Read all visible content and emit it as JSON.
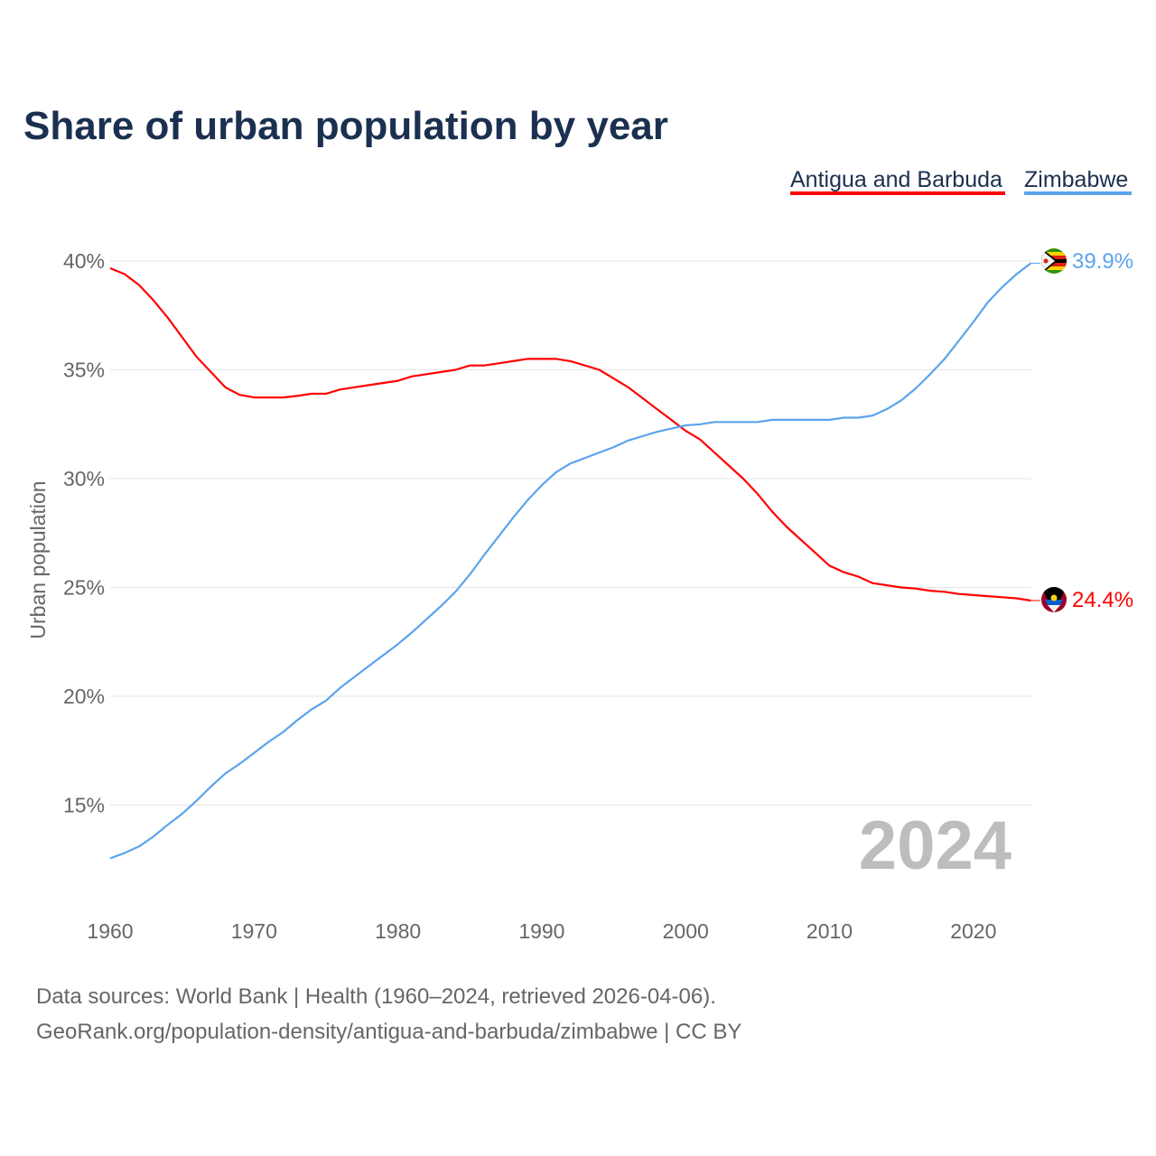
{
  "chart_data": {
    "type": "line",
    "title": "Share of urban population by year",
    "ylabel": "Urban population",
    "xlabel": "",
    "xlim": [
      1960,
      2024
    ],
    "ylim": [
      12,
      41
    ],
    "x_ticks": [
      1960,
      1970,
      1980,
      1990,
      2000,
      2010,
      2020
    ],
    "x_tick_labels": [
      "1960",
      "1970",
      "1980",
      "1990",
      "2000",
      "2010",
      "2020"
    ],
    "y_ticks": [
      15,
      20,
      25,
      30,
      35,
      40
    ],
    "y_tick_labels": [
      "15%",
      "20%",
      "25%",
      "30%",
      "35%",
      "40%"
    ],
    "grid": true,
    "legend_position": "top-right",
    "current_year_label": "2024",
    "x": [
      1960,
      1961,
      1962,
      1963,
      1964,
      1965,
      1966,
      1967,
      1968,
      1969,
      1970,
      1971,
      1972,
      1973,
      1974,
      1975,
      1976,
      1977,
      1978,
      1979,
      1980,
      1981,
      1982,
      1983,
      1984,
      1985,
      1986,
      1987,
      1988,
      1989,
      1990,
      1991,
      1992,
      1993,
      1994,
      1995,
      1996,
      1997,
      1998,
      1999,
      2000,
      2001,
      2002,
      2003,
      2004,
      2005,
      2006,
      2007,
      2008,
      2009,
      2010,
      2011,
      2012,
      2013,
      2014,
      2015,
      2016,
      2017,
      2018,
      2019,
      2020,
      2021,
      2022,
      2023,
      2024
    ],
    "series": [
      {
        "name": "Antigua and Barbuda",
        "color": "#ff0000",
        "end_label": "24.4%",
        "flag": "antigua-and-barbuda-flag",
        "values": [
          39.67,
          39.4,
          38.9,
          38.2,
          37.4,
          36.5,
          35.6,
          34.9,
          34.2,
          33.85,
          33.73,
          33.73,
          33.73,
          33.8,
          33.9,
          33.9,
          34.1,
          34.2,
          34.3,
          34.4,
          34.5,
          34.7,
          34.8,
          34.9,
          35.0,
          35.2,
          35.2,
          35.3,
          35.4,
          35.5,
          35.5,
          35.5,
          35.4,
          35.2,
          35.0,
          34.6,
          34.2,
          33.7,
          33.2,
          32.7,
          32.2,
          31.8,
          31.2,
          30.6,
          30.0,
          29.3,
          28.5,
          27.8,
          27.2,
          26.6,
          26.0,
          25.7,
          25.5,
          25.2,
          25.1,
          25.0,
          24.95,
          24.85,
          24.8,
          24.7,
          24.65,
          24.6,
          24.55,
          24.5,
          24.4
        ]
      },
      {
        "name": "Zimbabwe",
        "color": "#5ba4ec",
        "end_label": "39.9%",
        "flag": "zimbabwe-flag",
        "values": [
          12.55,
          12.8,
          13.1,
          13.55,
          14.1,
          14.6,
          15.2,
          15.85,
          16.45,
          16.9,
          17.4,
          17.9,
          18.35,
          18.9,
          19.4,
          19.8,
          20.4,
          20.9,
          21.4,
          21.9,
          22.4,
          22.95,
          23.55,
          24.15,
          24.8,
          25.6,
          26.5,
          27.35,
          28.2,
          29.0,
          29.7,
          30.3,
          30.7,
          30.95,
          31.2,
          31.45,
          31.75,
          31.95,
          32.15,
          32.3,
          32.45,
          32.5,
          32.6,
          32.6,
          32.6,
          32.6,
          32.7,
          32.7,
          32.7,
          32.7,
          32.7,
          32.8,
          32.8,
          32.9,
          33.2,
          33.6,
          34.15,
          34.8,
          35.5,
          36.35,
          37.2,
          38.1,
          38.8,
          39.4,
          39.9
        ]
      }
    ]
  },
  "footer": {
    "line1": "Data sources: World Bank | Health (1960–2024, retrieved 2026-04-06).",
    "line2": "GeoRank.org/population-density/antigua-and-barbuda/zimbabwe | CC BY"
  }
}
